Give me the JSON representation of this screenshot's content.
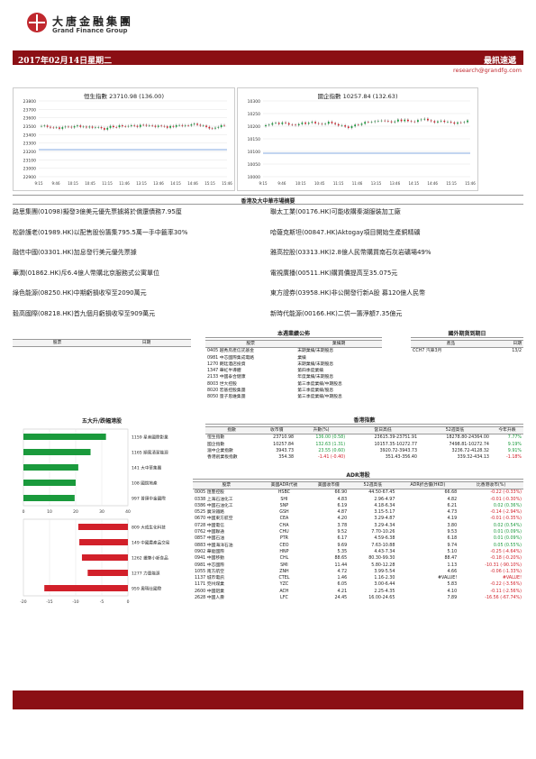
{
  "header": {
    "logo_cn": "大唐金融集團",
    "logo_en": "Grand Finance Group",
    "date": "2017年02月14日星期二",
    "report_title": "最訊速遞",
    "email": "research@grandfg.com"
  },
  "colors": {
    "brand_red": "#8b0f14",
    "up": "#1a9a3c",
    "down": "#d2202a"
  },
  "hsi_chart": {
    "title": "恒生指數 23710.98 (136.00)",
    "y_ticks": [
      "23800",
      "23700",
      "23600",
      "23500",
      "23400",
      "23300",
      "23200",
      "23100",
      "23000",
      "22900"
    ],
    "x_ticks": [
      "9:15",
      "9:46",
      "10:15",
      "10:45",
      "11:15",
      "11:46",
      "13:15",
      "13:46",
      "14:15",
      "14:46",
      "15:15",
      "15:46"
    ]
  },
  "hscei_chart": {
    "title": "國企指數 10257.84 (132.63)",
    "y_ticks": [
      "10300",
      "10250",
      "10200",
      "10150",
      "10100",
      "10050",
      "10000"
    ],
    "x_ticks": [
      "9:15",
      "9:46",
      "10:15",
      "10:45",
      "11:15",
      "11:46",
      "13:15",
      "13:46",
      "14:15",
      "14:46",
      "15:15",
      "15:46"
    ]
  },
  "market_summary": {
    "title": "香港及大中華市場摘要",
    "left": [
      "路思集團(01098)擬發3億美元優先票據將於償還債務7.95厘",
      "松齡護老(01989.HK)以配售股份籌集795.5萬一手中籤率30%",
      "融信中國(03301.HK)加息發行美元優先票據",
      "華潤(01862.HK)斥6.4億人幣購北京服務式公寓單位",
      "綠色能源(08250.HK)中期虧損收窄至2090萬元",
      "毅高國際(08218.HK)首九個月虧損收窄至909萬元"
    ],
    "right": [
      "聯太工業(00176.HK)可能收購秦湖服裝加工廠",
      "哈薩克斯坦(00847.HK)Aktogay項目開始生產銅精礦",
      "雅高控股(03313.HK)2.8億人民幣購買南石灰岩礦場49%",
      "電視廣播(00511.HK)購買價提高至35.075元",
      "東方證券(03958.HK)非公開發行新A股 募120億人民幣",
      "新時代能源(00166.HK)二供一籌淨額7.35億元"
    ]
  },
  "blank_table": {
    "headers": [
      "股票",
      "日期"
    ]
  },
  "results": {
    "title": "本週業績公佈",
    "headers": [
      "股票",
      "業績期"
    ],
    "rows": [
      [
        "0405 越秀房產信託基金",
        "末期業績/末期股息"
      ],
      [
        "0981 中芯國際集成電路",
        "業績"
      ],
      [
        "1270 朗廷酒店投資",
        "末期業績/末期股息"
      ],
      [
        "1347 華虹半導體",
        "第四季度業績"
      ],
      [
        "2133 中國泰合健康",
        "年度業績/末期股息"
      ],
      [
        "8003 世大控股",
        "第三季度業績/中期股息"
      ],
      [
        "8020 宏基控股集團",
        "第三季度業績/股息"
      ],
      [
        "8050 量子思維集團",
        "第三季度業績/中期股息"
      ]
    ]
  },
  "forex": {
    "title": "國外期貨到期日",
    "headers": [
      "產品",
      "日期"
    ],
    "rows": [
      [
        "CCH7 汽車3月",
        "13/2"
      ]
    ]
  },
  "movers": {
    "title": "五大升/跌幅港股",
    "up": [
      {
        "label": "1159 星美國際影業",
        "value": 31.6
      },
      {
        "label": "1165 順風清潔能源",
        "value": 25.7
      },
      {
        "label": "141 大中華集團",
        "value": 21.0
      },
      {
        "label": "108 國銳地產",
        "value": 20.0
      },
      {
        "label": "997 普匯中金國際",
        "value": 19.6
      }
    ],
    "up_axis": [
      "0",
      "10",
      "20",
      "30",
      "40"
    ],
    "down": [
      {
        "label": "809 大成生化科技",
        "value": -9.5
      },
      {
        "label": "149 中國農產品交易",
        "value": -9.3
      },
      {
        "label": "1262 蠟筆小新食品",
        "value": -8.8
      },
      {
        "label": "1277 力量能源",
        "value": -7.7
      },
      {
        "label": "959 奧瑪仕國際",
        "value": -16.0
      }
    ],
    "down_axis": [
      "-20",
      "-15",
      "-10",
      "-5",
      "0"
    ]
  },
  "hk_index": {
    "title": "香港指數",
    "headers": [
      "指數",
      "收市價",
      "升數(%)",
      "當日高低",
      "52週高低",
      "今年升跌"
    ],
    "rows": [
      [
        "恒生指數",
        "23710.98",
        "136.00 (0.58)",
        "23615.39-23751.91",
        "18278.80-24364.00",
        "7.77%",
        "up"
      ],
      [
        "國企指數",
        "10257.84",
        "132.63 (1.31)",
        "10157.35-10272.77",
        "7498.81-10272.74",
        "9.19%",
        "up"
      ],
      [
        "滬中企業指數",
        "3943.73",
        "23.55 (0.60)",
        "3920.72-3943.73",
        "3236.72-4128.32",
        "9.91%",
        "up"
      ],
      [
        "香港創業板指數",
        "354.38",
        "-1.41 (-0.40)",
        "351.43-356.40",
        "339.32-434.13",
        "-1.18%",
        "dn"
      ]
    ]
  },
  "adr": {
    "title": "ADR港股",
    "headers": [
      "股票",
      "美國ADR代號",
      "美國收市價",
      "52週高低",
      "ADR折合價(HKD)",
      "比香港收市(%)"
    ],
    "rows": [
      [
        "0005 匯豐控股",
        "HSBC",
        "66.90",
        "44.50-67.45",
        "66.68",
        "-0.22 (-0.33%)",
        "dn"
      ],
      [
        "0338 上海石油化工",
        "SHI",
        "4.83",
        "2.96-4.97",
        "4.82",
        "-0.01 (-0.30%)",
        "dn"
      ],
      [
        "0386 中國石油化工",
        "SNP",
        "6.19",
        "4.18-6.34",
        "6.21",
        "0.02 (0.36%)",
        "up"
      ],
      [
        "0525 廣深鐵路",
        "GSH",
        "4.87",
        "3.15-5.17",
        "4.73",
        "-0.14 (-2.94%)",
        "dn"
      ],
      [
        "0670 中國東方航空",
        "CEA",
        "4.20",
        "3.29-4.87",
        "4.19",
        "-0.01 (-0.35%)",
        "dn"
      ],
      [
        "0728 中國電信",
        "CHA",
        "3.78",
        "3.29-4.34",
        "3.80",
        "0.02 (0.54%)",
        "up"
      ],
      [
        "0762 中國聯通",
        "CHU",
        "9.52",
        "7.70-10.26",
        "9.53",
        "0.01 (0.09%)",
        "up"
      ],
      [
        "0857 中國石油",
        "PTR",
        "6.17",
        "4.59-6.38",
        "6.18",
        "0.01 (0.09%)",
        "up"
      ],
      [
        "0883 中國海洋石油",
        "CEO",
        "9.69",
        "7.63-10.88",
        "9.74",
        "0.05 (0.55%)",
        "up"
      ],
      [
        "0902 華能國際",
        "HNP",
        "5.35",
        "4.43-7.34",
        "5.10",
        "-0.25 (-4.64%)",
        "dn"
      ],
      [
        "0941 中國移動",
        "CHL",
        "88.65",
        "80.30-99.30",
        "88.47",
        "-0.18 (-0.20%)",
        "dn"
      ],
      [
        "0981 中芯國際",
        "SMI",
        "11.44",
        "5.80-12.28",
        "1.13",
        "-10.31 (-90.10%)",
        "dn"
      ],
      [
        "1055 南方航空",
        "ZNH",
        "4.72",
        "3.99-5.54",
        "4.66",
        "-0.06 (-1.33%)",
        "dn"
      ],
      [
        "1137 城市電訊",
        "CTEL",
        "1.46",
        "1.16-2.30",
        "#VALUE!",
        "#VALUE!",
        "dn"
      ],
      [
        "1171 兗州煤業",
        "YZC",
        "6.05",
        "3.00-6.44",
        "5.83",
        "-0.22 (-3.56%)",
        "dn"
      ],
      [
        "2600 中國鋁業",
        "ACH",
        "4.21",
        "2.25-4.35",
        "4.10",
        "-0.11 (-2.56%)",
        "dn"
      ],
      [
        "2628 中國人壽",
        "LFC",
        "24.45",
        "16.00-24.65",
        "7.89",
        "-16.56 (-67.74%)",
        "dn"
      ]
    ]
  }
}
